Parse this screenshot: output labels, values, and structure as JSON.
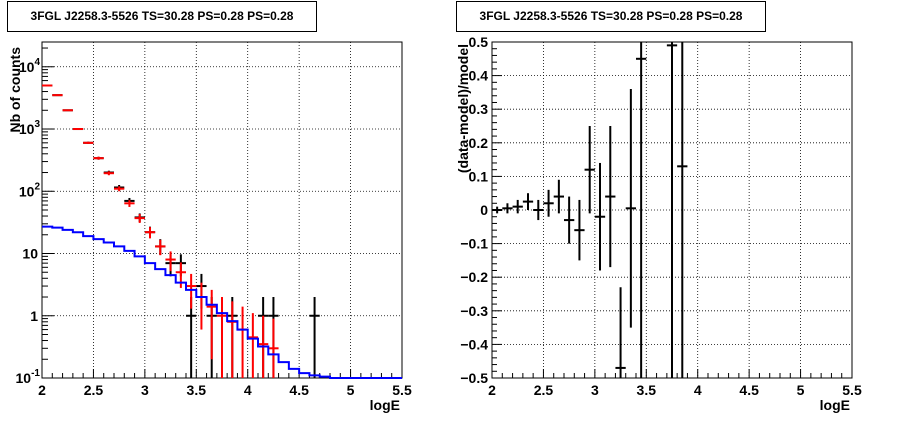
{
  "chart_data": [
    {
      "type": "histogram",
      "title": "3FGL J2258.3-5526 TS=30.28 PS=0.28 PS=0.28",
      "xlabel": "logE",
      "ylabel": "Nb of counts",
      "xlim": [
        2,
        5.5
      ],
      "ylim": [
        0.1,
        25000
      ],
      "yscale": "log",
      "grid": true,
      "x_ticks": [
        "2",
        "2.5",
        "3",
        "3.5",
        "4",
        "4.5",
        "5",
        "5.5"
      ],
      "y_ticks": [
        {
          "base": "10",
          "exp": "-1",
          "value": 0.1
        },
        {
          "base": "1",
          "exp": "",
          "value": 1
        },
        {
          "base": "10",
          "exp": "",
          "value": 10
        },
        {
          "base": "10",
          "exp": "2",
          "value": 100
        },
        {
          "base": "10",
          "exp": "3",
          "value": 1000
        },
        {
          "base": "10",
          "exp": "4",
          "value": 10000
        }
      ],
      "series": [
        {
          "color": "#000000",
          "style": "errorbar",
          "points": [
            {
              "x": 2.05,
              "y": 5000,
              "lo": 4930,
              "hi": 5070
            },
            {
              "x": 2.15,
              "y": 3500,
              "lo": 3440,
              "hi": 3560
            },
            {
              "x": 2.25,
              "y": 2000,
              "lo": 1955,
              "hi": 2045
            },
            {
              "x": 2.35,
              "y": 1000,
              "lo": 968,
              "hi": 1032
            },
            {
              "x": 2.45,
              "y": 600,
              "lo": 576,
              "hi": 624
            },
            {
              "x": 2.55,
              "y": 340,
              "lo": 322,
              "hi": 358
            },
            {
              "x": 2.65,
              "y": 200,
              "lo": 186,
              "hi": 214
            },
            {
              "x": 2.75,
              "y": 115,
              "lo": 104,
              "hi": 126
            },
            {
              "x": 2.85,
              "y": 70,
              "lo": 62,
              "hi": 78
            },
            {
              "x": 2.95,
              "y": 38,
              "lo": 32,
              "hi": 44
            },
            {
              "x": 3.05,
              "y": 22,
              "lo": 18,
              "hi": 27
            },
            {
              "x": 3.15,
              "y": 13,
              "lo": 9.5,
              "hi": 17
            },
            {
              "x": 3.25,
              "y": 7,
              "lo": 4.3,
              "hi": 9.7
            },
            {
              "x": 3.35,
              "y": 7,
              "lo": 4.3,
              "hi": 9.7
            },
            {
              "x": 3.45,
              "y": 1,
              "lo": 0.1,
              "hi": 2
            },
            {
              "x": 3.55,
              "y": 3,
              "lo": 1.3,
              "hi": 4.7
            },
            {
              "x": 3.65,
              "y": 1,
              "lo": 0.1,
              "hi": 2
            },
            {
              "x": 3.85,
              "y": 1,
              "lo": 0.1,
              "hi": 2
            },
            {
              "x": 4.15,
              "y": 1,
              "lo": 0.1,
              "hi": 2
            },
            {
              "x": 4.25,
              "y": 1,
              "lo": 0.1,
              "hi": 2
            },
            {
              "x": 4.65,
              "y": 1,
              "lo": 0.1,
              "hi": 2
            }
          ]
        },
        {
          "color": "#ff0000",
          "style": "errorbar",
          "points": [
            {
              "x": 2.05,
              "y": 5000,
              "lo": 4930,
              "hi": 5070
            },
            {
              "x": 2.15,
              "y": 3500,
              "lo": 3440,
              "hi": 3560
            },
            {
              "x": 2.25,
              "y": 2000,
              "lo": 1955,
              "hi": 2045
            },
            {
              "x": 2.35,
              "y": 1000,
              "lo": 968,
              "hi": 1032
            },
            {
              "x": 2.45,
              "y": 600,
              "lo": 576,
              "hi": 624
            },
            {
              "x": 2.55,
              "y": 340,
              "lo": 322,
              "hi": 358
            },
            {
              "x": 2.65,
              "y": 195,
              "lo": 181,
              "hi": 209
            },
            {
              "x": 2.75,
              "y": 110,
              "lo": 100,
              "hi": 120
            },
            {
              "x": 2.85,
              "y": 64,
              "lo": 56,
              "hi": 72
            },
            {
              "x": 2.95,
              "y": 37,
              "lo": 31,
              "hi": 43
            },
            {
              "x": 3.05,
              "y": 22,
              "lo": 17.5,
              "hi": 26.5
            },
            {
              "x": 3.15,
              "y": 13,
              "lo": 9.4,
              "hi": 16.6
            },
            {
              "x": 3.25,
              "y": 8,
              "lo": 5.2,
              "hi": 10.8
            },
            {
              "x": 3.35,
              "y": 5,
              "lo": 2.8,
              "hi": 7.2
            },
            {
              "x": 3.45,
              "y": 3,
              "lo": 1.3,
              "hi": 4.7
            },
            {
              "x": 3.55,
              "y": 2,
              "lo": 0.6,
              "hi": 3.4
            },
            {
              "x": 3.65,
              "y": 1.4,
              "lo": 0.2,
              "hi": 2.6
            },
            {
              "x": 3.75,
              "y": 1,
              "lo": 0.1,
              "hi": 2
            },
            {
              "x": 3.85,
              "y": 0.8,
              "lo": 0.1,
              "hi": 1.7
            },
            {
              "x": 3.95,
              "y": 0.6,
              "lo": 0.1,
              "hi": 1.4
            },
            {
              "x": 4.05,
              "y": 0.45,
              "lo": 0.1,
              "hi": 1.1
            },
            {
              "x": 4.15,
              "y": 0.35,
              "lo": 0.1,
              "hi": 1
            },
            {
              "x": 4.25,
              "y": 0.3,
              "lo": 0.1,
              "hi": 0.9
            }
          ]
        },
        {
          "color": "#0000ff",
          "style": "step",
          "x_edges": [
            2.0,
            2.1,
            2.2,
            2.3,
            2.4,
            2.5,
            2.6,
            2.7,
            2.8,
            2.9,
            3.0,
            3.1,
            3.2,
            3.3,
            3.4,
            3.5,
            3.6,
            3.7,
            3.8,
            3.9,
            4.0,
            4.1,
            4.2,
            4.3,
            4.4,
            4.5,
            4.6,
            4.7,
            4.8,
            4.9,
            5.0,
            5.5
          ],
          "values": [
            27,
            26,
            24,
            22,
            19,
            17,
            15,
            13,
            11,
            9,
            7,
            5.6,
            4.5,
            3.4,
            2.6,
            2,
            1.5,
            1.1,
            0.82,
            0.6,
            0.43,
            0.32,
            0.24,
            0.18,
            0.14,
            0.12,
            0.11,
            0.105,
            0.1,
            0.1,
            0.1
          ]
        }
      ]
    },
    {
      "type": "scatter",
      "title": "3FGL J2258.3-5526 TS=30.28 PS=0.28 PS=0.28",
      "xlabel": "logE",
      "ylabel": "(data-model)/model",
      "xlim": [
        2,
        5.5
      ],
      "ylim": [
        -0.5,
        0.5
      ],
      "grid": true,
      "x_ticks": [
        "2",
        "2.5",
        "3",
        "3.5",
        "4",
        "4.5",
        "5",
        "5.5"
      ],
      "y_ticks": [
        "−0.5",
        "−0.4",
        "−0.3",
        "−0.2",
        "−0.1",
        "0",
        "0.1",
        "0.2",
        "0.3",
        "0.4",
        "0.5"
      ],
      "series": [
        {
          "color": "#000000",
          "style": "errorbar",
          "points": [
            {
              "x": 2.05,
              "y": 0.0,
              "lo": -0.01,
              "hi": 0.01
            },
            {
              "x": 2.15,
              "y": 0.005,
              "lo": -0.01,
              "hi": 0.02
            },
            {
              "x": 2.25,
              "y": 0.01,
              "lo": -0.01,
              "hi": 0.03
            },
            {
              "x": 2.35,
              "y": 0.025,
              "lo": 0.0,
              "hi": 0.05
            },
            {
              "x": 2.45,
              "y": 0.0,
              "lo": -0.03,
              "hi": 0.03
            },
            {
              "x": 2.55,
              "y": 0.02,
              "lo": -0.02,
              "hi": 0.06
            },
            {
              "x": 2.65,
              "y": 0.04,
              "lo": -0.01,
              "hi": 0.09
            },
            {
              "x": 2.75,
              "y": -0.03,
              "lo": -0.1,
              "hi": 0.04
            },
            {
              "x": 2.85,
              "y": -0.06,
              "lo": -0.15,
              "hi": 0.03
            },
            {
              "x": 2.95,
              "y": 0.12,
              "lo": -0.01,
              "hi": 0.25
            },
            {
              "x": 3.05,
              "y": -0.02,
              "lo": -0.18,
              "hi": 0.14
            },
            {
              "x": 3.15,
              "y": 0.04,
              "lo": -0.17,
              "hi": 0.25
            },
            {
              "x": 3.25,
              "y": -0.47,
              "lo": -0.5,
              "hi": -0.23
            },
            {
              "x": 3.35,
              "y": 0.005,
              "lo": -0.35,
              "hi": 0.36
            },
            {
              "x": 3.45,
              "y": 0.45,
              "lo": -0.5,
              "hi": 0.5
            },
            {
              "x": 3.75,
              "y": 0.49,
              "lo": -0.5,
              "hi": 0.5
            },
            {
              "x": 3.85,
              "y": 0.13,
              "lo": -0.5,
              "hi": 0.5
            }
          ]
        }
      ]
    }
  ]
}
